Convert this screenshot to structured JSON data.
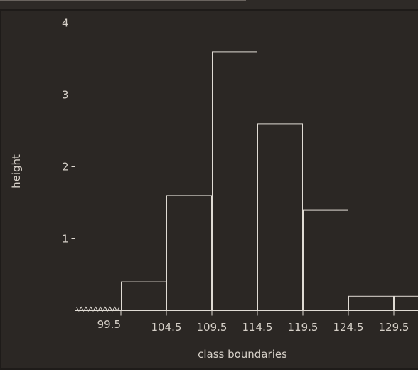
{
  "chart_data": {
    "type": "bar",
    "title": "",
    "xlabel": "class boundaries",
    "ylabel": "height",
    "x_ticks": [
      "99.5",
      "104.5",
      "109.5",
      "114.5",
      "119.5",
      "124.5",
      "129.5"
    ],
    "y_ticks": [
      "1",
      "2",
      "3",
      "4"
    ],
    "ylim": [
      0,
      4
    ],
    "axis_break": true,
    "bars": [
      {
        "from": 99.5,
        "to": 104.5,
        "height": 0.4
      },
      {
        "from": 104.5,
        "to": 109.5,
        "height": 1.6
      },
      {
        "from": 109.5,
        "to": 114.5,
        "height": 3.6
      },
      {
        "from": 114.5,
        "to": 119.5,
        "height": 2.6
      },
      {
        "from": 119.5,
        "to": 124.5,
        "height": 1.4
      },
      {
        "from": 124.5,
        "to": 129.5,
        "height": 0.2
      },
      {
        "from": 129.5,
        "to": 134.5,
        "height": 0.2
      }
    ],
    "grid": false,
    "colors": {
      "background": "#2b2724",
      "bar_stroke": "#e0dbd4",
      "axis": "#e0dbd4",
      "text": "#d6d0c8"
    }
  }
}
